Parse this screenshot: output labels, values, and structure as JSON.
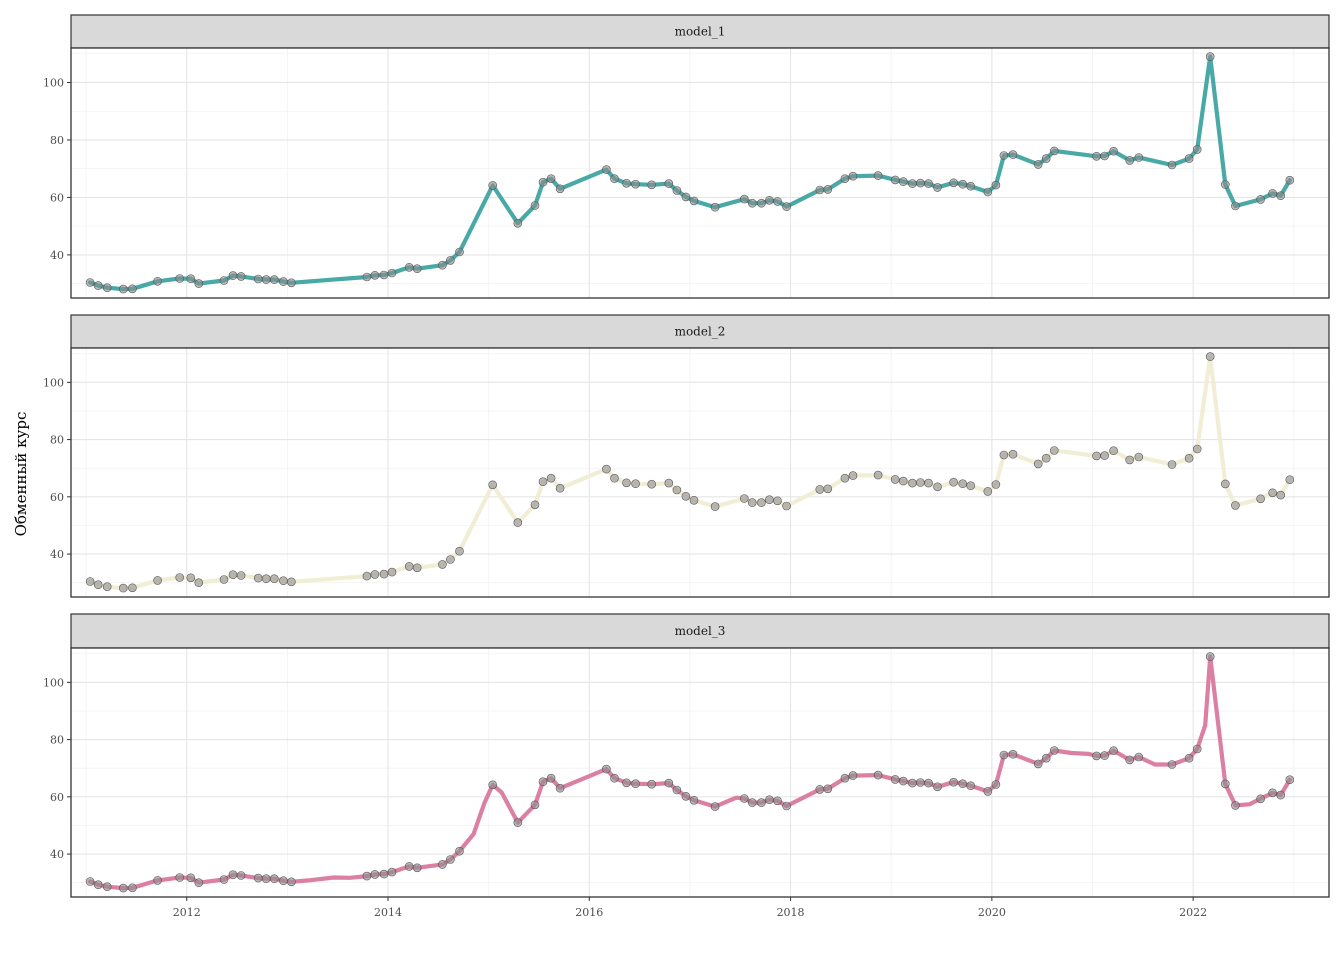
{
  "chart_data": {
    "type": "line",
    "ylabel": "Обменный курс",
    "xlabel": "",
    "xlim": [
      2010.85,
      2023.35
    ],
    "ylim": [
      25,
      112
    ],
    "x_ticks": [
      2012,
      2014,
      2016,
      2018,
      2020,
      2022
    ],
    "x_tick_labels": [
      "2012",
      "2014",
      "2016",
      "2018",
      "2020",
      "2022"
    ],
    "y_ticks": [
      40,
      60,
      80,
      100
    ],
    "y_tick_labels": [
      "40",
      "60",
      "80",
      "100"
    ],
    "grid": true,
    "legend": "none",
    "point_color": "#8c8c8c",
    "observed": {
      "x": [
        2011.04,
        2011.12,
        2011.21,
        2011.37,
        2011.46,
        2011.71,
        2011.93,
        2012.04,
        2012.12,
        2012.37,
        2012.46,
        2012.54,
        2012.71,
        2012.79,
        2012.87,
        2012.96,
        2013.04,
        2013.79,
        2013.87,
        2013.96,
        2014.04,
        2014.21,
        2014.29,
        2014.54,
        2014.62,
        2014.71,
        2015.04,
        2015.29,
        2015.46,
        2015.54,
        2015.62,
        2015.71,
        2016.17,
        2016.25,
        2016.37,
        2016.46,
        2016.62,
        2016.79,
        2016.87,
        2016.96,
        2017.04,
        2017.25,
        2017.54,
        2017.62,
        2017.71,
        2017.79,
        2017.87,
        2017.96,
        2018.29,
        2018.37,
        2018.54,
        2018.62,
        2018.87,
        2019.04,
        2019.12,
        2019.21,
        2019.29,
        2019.37,
        2019.46,
        2019.62,
        2019.71,
        2019.79,
        2019.96,
        2020.04,
        2020.12,
        2020.21,
        2020.46,
        2020.54,
        2020.62,
        2021.04,
        2021.12,
        2021.21,
        2021.37,
        2021.46,
        2021.79,
        2021.96,
        2022.04,
        2022.17,
        2022.32,
        2022.42,
        2022.67,
        2022.79,
        2022.87,
        2022.96
      ],
      "y": [
        30.4,
        29.3,
        28.6,
        28.1,
        28.2,
        30.8,
        31.8,
        31.7,
        30.0,
        31.1,
        32.8,
        32.5,
        31.6,
        31.4,
        31.4,
        30.7,
        30.3,
        32.3,
        32.9,
        33.0,
        33.7,
        35.7,
        35.2,
        36.4,
        38.1,
        41.0,
        64.2,
        51.0,
        57.2,
        65.3,
        66.5,
        63.0,
        69.7,
        66.5,
        64.9,
        64.6,
        64.4,
        64.8,
        62.4,
        60.2,
        58.8,
        56.6,
        59.4,
        58.0,
        58.0,
        59.0,
        58.6,
        56.8,
        62.6,
        62.8,
        66.5,
        67.4,
        67.6,
        66.1,
        65.5,
        64.8,
        65.0,
        64.8,
        63.5,
        65.1,
        64.6,
        63.9,
        61.9,
        64.3,
        74.6,
        74.9,
        71.5,
        73.5,
        76.2,
        74.3,
        74.4,
        76.1,
        72.9,
        73.9,
        71.3,
        73.5,
        76.7,
        109.0,
        64.5,
        57.0,
        59.3,
        61.4,
        60.6,
        66.0
      ]
    },
    "panels": [
      {
        "strip_label": "model_1",
        "color": "#48a9a6",
        "fitted": {
          "x": [
            2011.04,
            2011.12,
            2011.21,
            2011.37,
            2011.46,
            2011.71,
            2011.93,
            2012.04,
            2012.12,
            2012.37,
            2012.46,
            2012.54,
            2012.71,
            2012.79,
            2012.87,
            2012.96,
            2013.04,
            2013.79,
            2013.87,
            2013.96,
            2014.04,
            2014.21,
            2014.29,
            2014.54,
            2014.62,
            2014.71,
            2015.04,
            2015.29,
            2015.46,
            2015.54,
            2015.62,
            2015.71,
            2016.17,
            2016.25,
            2016.37,
            2016.46,
            2016.62,
            2016.79,
            2016.87,
            2016.96,
            2017.04,
            2017.25,
            2017.54,
            2017.62,
            2017.71,
            2017.79,
            2017.87,
            2017.96,
            2018.29,
            2018.37,
            2018.54,
            2018.62,
            2018.87,
            2019.04,
            2019.12,
            2019.21,
            2019.29,
            2019.37,
            2019.46,
            2019.62,
            2019.71,
            2019.79,
            2019.96,
            2020.04,
            2020.12,
            2020.21,
            2020.46,
            2020.54,
            2020.62,
            2021.04,
            2021.12,
            2021.21,
            2021.37,
            2021.46,
            2021.79,
            2021.96,
            2022.04,
            2022.17,
            2022.32,
            2022.42,
            2022.67,
            2022.79,
            2022.87,
            2022.96
          ],
          "y": [
            30.4,
            29.3,
            28.6,
            28.1,
            28.2,
            30.8,
            31.8,
            31.7,
            30.0,
            31.1,
            32.8,
            32.5,
            31.6,
            31.4,
            31.4,
            30.7,
            30.3,
            32.3,
            32.9,
            33.0,
            33.7,
            35.7,
            35.2,
            36.4,
            38.1,
            41.0,
            64.2,
            51.0,
            57.2,
            65.3,
            66.5,
            63.0,
            69.7,
            66.5,
            64.9,
            64.6,
            64.4,
            64.8,
            62.4,
            60.2,
            58.8,
            56.6,
            59.4,
            58.0,
            58.0,
            59.0,
            58.6,
            56.8,
            62.6,
            62.8,
            66.5,
            67.4,
            67.6,
            66.1,
            65.5,
            64.8,
            65.0,
            64.8,
            63.5,
            65.1,
            64.6,
            63.9,
            61.9,
            64.3,
            74.6,
            74.9,
            71.5,
            73.5,
            76.2,
            74.3,
            74.4,
            76.1,
            72.9,
            73.9,
            71.3,
            73.5,
            76.7,
            109.0,
            64.5,
            57.0,
            59.3,
            61.4,
            60.6,
            66.0
          ]
        }
      },
      {
        "strip_label": "model_2",
        "color": "#f2eed6",
        "fitted": {
          "x": [
            2011.04,
            2011.12,
            2011.21,
            2011.37,
            2011.46,
            2011.71,
            2011.93,
            2012.04,
            2012.12,
            2012.37,
            2012.46,
            2012.54,
            2012.71,
            2012.79,
            2012.87,
            2012.96,
            2013.04,
            2013.79,
            2013.87,
            2013.96,
            2014.04,
            2014.21,
            2014.29,
            2014.54,
            2014.62,
            2014.71,
            2015.04,
            2015.29,
            2015.46,
            2015.54,
            2015.62,
            2015.71,
            2016.17,
            2016.25,
            2016.37,
            2016.46,
            2016.62,
            2016.79,
            2016.87,
            2016.96,
            2017.04,
            2017.25,
            2017.54,
            2017.62,
            2017.71,
            2017.79,
            2017.87,
            2017.96,
            2018.29,
            2018.37,
            2018.54,
            2018.62,
            2018.87,
            2019.04,
            2019.12,
            2019.21,
            2019.29,
            2019.37,
            2019.46,
            2019.62,
            2019.71,
            2019.79,
            2019.96,
            2020.04,
            2020.12,
            2020.21,
            2020.46,
            2020.54,
            2020.62,
            2021.04,
            2021.12,
            2021.21,
            2021.37,
            2021.46,
            2021.79,
            2021.96,
            2022.04,
            2022.17,
            2022.32,
            2022.42,
            2022.67,
            2022.79,
            2022.87,
            2022.96
          ],
          "y": [
            30.4,
            29.3,
            28.6,
            28.1,
            28.2,
            30.8,
            31.8,
            31.7,
            30.0,
            31.1,
            32.8,
            32.5,
            31.6,
            31.4,
            31.4,
            30.7,
            30.3,
            32.3,
            32.9,
            33.0,
            33.7,
            35.7,
            35.2,
            36.4,
            38.1,
            41.0,
            64.2,
            51.0,
            57.2,
            65.3,
            66.5,
            63.0,
            69.7,
            66.5,
            64.9,
            64.6,
            64.4,
            64.8,
            62.4,
            60.2,
            58.8,
            56.6,
            59.4,
            58.0,
            58.0,
            59.0,
            58.6,
            56.8,
            62.6,
            62.8,
            66.5,
            67.4,
            67.6,
            66.1,
            65.5,
            64.8,
            65.0,
            64.8,
            63.5,
            65.1,
            64.6,
            63.9,
            61.9,
            64.3,
            74.6,
            74.9,
            71.5,
            73.5,
            76.2,
            74.3,
            74.4,
            76.1,
            72.9,
            73.9,
            71.3,
            73.5,
            76.7,
            109.0,
            64.5,
            57.0,
            59.3,
            61.4,
            60.6,
            66.0
          ]
        }
      },
      {
        "strip_label": "model_3",
        "color": "#db7fa3",
        "fitted": {
          "x": [
            2011.04,
            2011.12,
            2011.21,
            2011.37,
            2011.46,
            2011.71,
            2011.93,
            2012.04,
            2012.12,
            2012.37,
            2012.46,
            2012.54,
            2012.71,
            2012.79,
            2012.87,
            2012.96,
            2013.04,
            2013.21,
            2013.46,
            2013.62,
            2013.79,
            2013.87,
            2013.96,
            2014.04,
            2014.21,
            2014.29,
            2014.54,
            2014.62,
            2014.71,
            2014.85,
            2014.96,
            2015.04,
            2015.13,
            2015.29,
            2015.46,
            2015.54,
            2015.62,
            2015.71,
            2016.17,
            2016.25,
            2016.37,
            2016.46,
            2016.62,
            2016.79,
            2016.87,
            2016.96,
            2017.04,
            2017.25,
            2017.46,
            2017.54,
            2017.62,
            2017.71,
            2017.79,
            2017.87,
            2017.96,
            2018.29,
            2018.37,
            2018.54,
            2018.62,
            2018.87,
            2019.04,
            2019.12,
            2019.21,
            2019.29,
            2019.37,
            2019.46,
            2019.62,
            2019.71,
            2019.79,
            2019.96,
            2020.04,
            2020.12,
            2020.21,
            2020.46,
            2020.54,
            2020.62,
            2020.79,
            2020.96,
            2021.04,
            2021.12,
            2021.21,
            2021.37,
            2021.46,
            2021.62,
            2021.79,
            2021.96,
            2022.04,
            2022.12,
            2022.17,
            2022.32,
            2022.42,
            2022.56,
            2022.67,
            2022.79,
            2022.87,
            2022.96
          ],
          "y": [
            30.4,
            29.3,
            28.6,
            28.1,
            28.2,
            30.8,
            31.8,
            31.7,
            30.0,
            31.1,
            32.8,
            32.5,
            31.6,
            31.4,
            31.4,
            30.7,
            30.3,
            30.8,
            31.8,
            31.7,
            32.3,
            32.9,
            33.0,
            33.7,
            35.7,
            35.2,
            36.4,
            38.1,
            41.0,
            47.0,
            58.0,
            64.2,
            61.5,
            51.0,
            57.2,
            65.3,
            66.5,
            63.0,
            69.7,
            66.5,
            64.9,
            64.6,
            64.4,
            64.8,
            62.4,
            60.2,
            58.8,
            56.6,
            59.7,
            59.4,
            58.0,
            58.0,
            59.0,
            58.6,
            56.8,
            62.6,
            62.8,
            66.5,
            67.4,
            67.6,
            66.1,
            65.5,
            64.8,
            65.0,
            64.8,
            63.5,
            65.1,
            64.6,
            63.9,
            61.9,
            64.3,
            74.6,
            74.9,
            71.5,
            73.5,
            76.2,
            75.3,
            75.0,
            74.3,
            74.4,
            76.1,
            72.9,
            73.9,
            71.3,
            71.3,
            73.5,
            76.7,
            85.0,
            109.0,
            64.5,
            57.0,
            57.4,
            59.3,
            61.4,
            60.6,
            66.0
          ]
        }
      }
    ]
  }
}
